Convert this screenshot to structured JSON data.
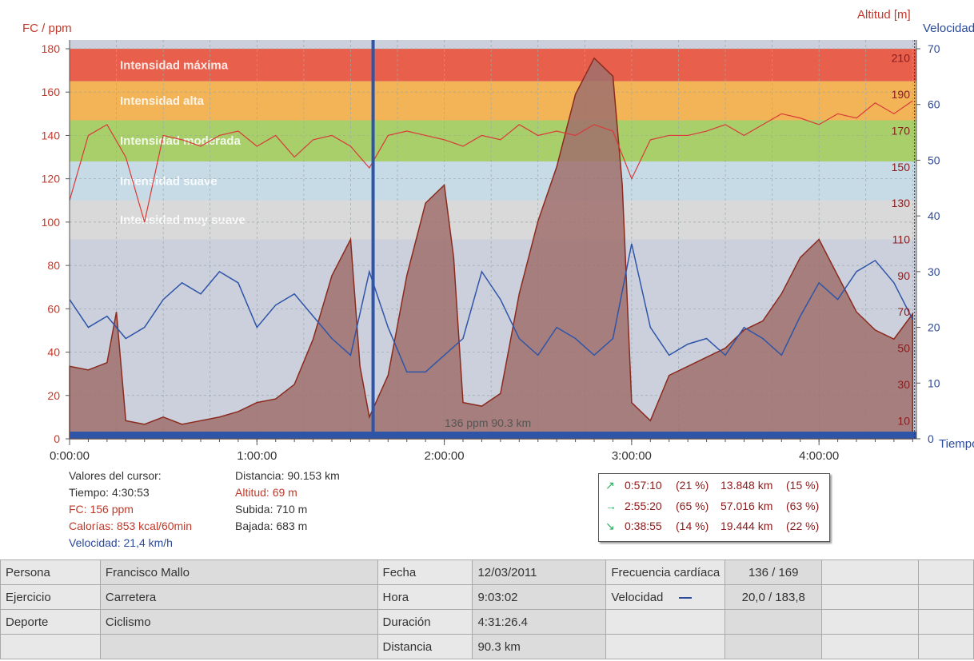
{
  "axes": {
    "hr_label": "FC / ppm",
    "alt_label": "Altitud [m]",
    "speed_label": "Velocidad",
    "time_label": "Tiempo",
    "hr_ticks": [
      "0",
      "20",
      "40",
      "60",
      "80",
      "100",
      "120",
      "140",
      "160",
      "180"
    ],
    "alt_ticks": [
      "10",
      "30",
      "50",
      "70",
      "90",
      "110",
      "130",
      "150",
      "170",
      "190",
      "210"
    ],
    "speed_ticks": [
      "0",
      "10",
      "20",
      "30",
      "40",
      "50",
      "60",
      "70"
    ],
    "time_ticks": [
      "0:00:00",
      "1:00:00",
      "2:00:00",
      "3:00:00",
      "4:00:00"
    ]
  },
  "zones": [
    {
      "label": "Intensidad máxima",
      "color": "#e8604c"
    },
    {
      "label": "Intensidad alta",
      "color": "#f2b457"
    },
    {
      "label": "Intensidad moderada",
      "color": "#a9cf6a"
    },
    {
      "label": "Intensidad suave",
      "color": "#c7dbe6"
    },
    {
      "label": "Intensidad muy suave",
      "color": "#d9d9d9"
    }
  ],
  "center_label": "136 ppm 90.3 km",
  "cursor": {
    "header": "Valores del cursor:",
    "tiempo": "Tiempo: 4:30:53",
    "fc": "FC: 156 ppm",
    "calorias": "Calorías: 853 kcal/60min",
    "velocidad": "Velocidad: 21,4 km/h",
    "distancia": "Distancia: 90.153 km",
    "altitud": "Altitud: 69 m",
    "subida": "Subida: 710 m",
    "bajada": "Bajada: 683 m"
  },
  "stats": [
    {
      "arrow": "↗",
      "time": "0:57:10",
      "pct": "(21 %)",
      "km": "13.848 km",
      "kmpct": "(15 %)"
    },
    {
      "arrow": "→",
      "time": "2:55:20",
      "pct": "(65 %)",
      "km": "57.016 km",
      "kmpct": "(63 %)"
    },
    {
      "arrow": "↘",
      "time": "0:38:55",
      "pct": "(14 %)",
      "km": "19.444 km",
      "kmpct": "(22 %)"
    }
  ],
  "info": {
    "persona_label": "Persona",
    "persona": "Francisco Mallo",
    "ejercicio_label": "Ejercicio",
    "ejercicio": "Carretera",
    "deporte_label": "Deporte",
    "deporte": "Ciclismo",
    "fecha_label": "Fecha",
    "fecha": "12/03/2011",
    "hora_label": "Hora",
    "hora": "9:03:02",
    "duracion_label": "Duración",
    "duracion": "4:31:26.4",
    "distancia_label": "Distancia",
    "distancia": "90.3 km",
    "fc_label": "Frecuencia cardíaca",
    "fc": "136 / 169",
    "vel_label": "Velocidad",
    "vel": "20,0 / 183,8"
  },
  "colors": {
    "hr": "#d93a3a",
    "altitude_fill": "#a0706c",
    "altitude_line": "#8b2a1e",
    "speed": "#2f55a8"
  },
  "chart_data": {
    "type": "line",
    "x_unit": "hours",
    "xlim": [
      0,
      4.52
    ],
    "series": [
      {
        "name": "FC / ppm",
        "axis": "left",
        "ylim": [
          0,
          180
        ],
        "x": [
          0,
          0.1,
          0.2,
          0.3,
          0.4,
          0.5,
          0.6,
          0.7,
          0.8,
          0.9,
          1.0,
          1.1,
          1.2,
          1.3,
          1.4,
          1.5,
          1.6,
          1.7,
          1.8,
          1.9,
          2.0,
          2.1,
          2.2,
          2.3,
          2.4,
          2.5,
          2.6,
          2.7,
          2.8,
          2.9,
          3.0,
          3.1,
          3.2,
          3.3,
          3.4,
          3.5,
          3.6,
          3.7,
          3.8,
          3.9,
          4.0,
          4.1,
          4.2,
          4.3,
          4.4,
          4.5
        ],
        "y": [
          110,
          140,
          145,
          130,
          100,
          140,
          138,
          135,
          140,
          142,
          135,
          140,
          130,
          138,
          140,
          135,
          125,
          140,
          142,
          140,
          138,
          135,
          140,
          138,
          145,
          140,
          142,
          140,
          145,
          142,
          120,
          138,
          140,
          140,
          142,
          145,
          140,
          145,
          150,
          148,
          145,
          150,
          148,
          155,
          150,
          156
        ]
      },
      {
        "name": "Altitud [m]",
        "axis": "right-outer",
        "ylim": [
          0,
          220
        ],
        "x": [
          0,
          0.1,
          0.2,
          0.25,
          0.3,
          0.4,
          0.5,
          0.6,
          0.7,
          0.8,
          0.9,
          1.0,
          1.1,
          1.2,
          1.3,
          1.4,
          1.5,
          1.55,
          1.6,
          1.7,
          1.8,
          1.9,
          2.0,
          2.05,
          2.1,
          2.2,
          2.3,
          2.4,
          2.5,
          2.6,
          2.7,
          2.8,
          2.9,
          2.95,
          3.0,
          3.1,
          3.2,
          3.3,
          3.4,
          3.5,
          3.6,
          3.7,
          3.8,
          3.9,
          4.0,
          4.1,
          4.2,
          4.3,
          4.4,
          4.5
        ],
        "y": [
          40,
          38,
          42,
          70,
          10,
          8,
          12,
          8,
          10,
          12,
          15,
          20,
          22,
          30,
          55,
          90,
          110,
          40,
          12,
          35,
          90,
          130,
          140,
          100,
          20,
          18,
          25,
          80,
          120,
          150,
          190,
          210,
          200,
          140,
          20,
          10,
          35,
          40,
          45,
          50,
          60,
          65,
          80,
          100,
          110,
          90,
          70,
          60,
          55,
          69
        ]
      },
      {
        "name": "Velocidad",
        "axis": "right",
        "ylim": [
          0,
          70
        ],
        "x": [
          0,
          0.1,
          0.2,
          0.3,
          0.4,
          0.5,
          0.6,
          0.7,
          0.8,
          0.9,
          1.0,
          1.1,
          1.2,
          1.3,
          1.4,
          1.5,
          1.6,
          1.7,
          1.8,
          1.9,
          2.0,
          2.1,
          2.2,
          2.3,
          2.4,
          2.5,
          2.6,
          2.7,
          2.8,
          2.9,
          3.0,
          3.1,
          3.2,
          3.3,
          3.4,
          3.5,
          3.6,
          3.7,
          3.8,
          3.9,
          4.0,
          4.1,
          4.2,
          4.3,
          4.4,
          4.5
        ],
        "y": [
          25,
          20,
          22,
          18,
          20,
          25,
          28,
          26,
          30,
          28,
          20,
          24,
          26,
          22,
          18,
          15,
          30,
          20,
          12,
          12,
          15,
          18,
          30,
          25,
          18,
          15,
          20,
          18,
          15,
          18,
          35,
          20,
          15,
          17,
          18,
          15,
          20,
          18,
          15,
          22,
          28,
          25,
          30,
          32,
          28,
          21.4
        ]
      }
    ]
  }
}
